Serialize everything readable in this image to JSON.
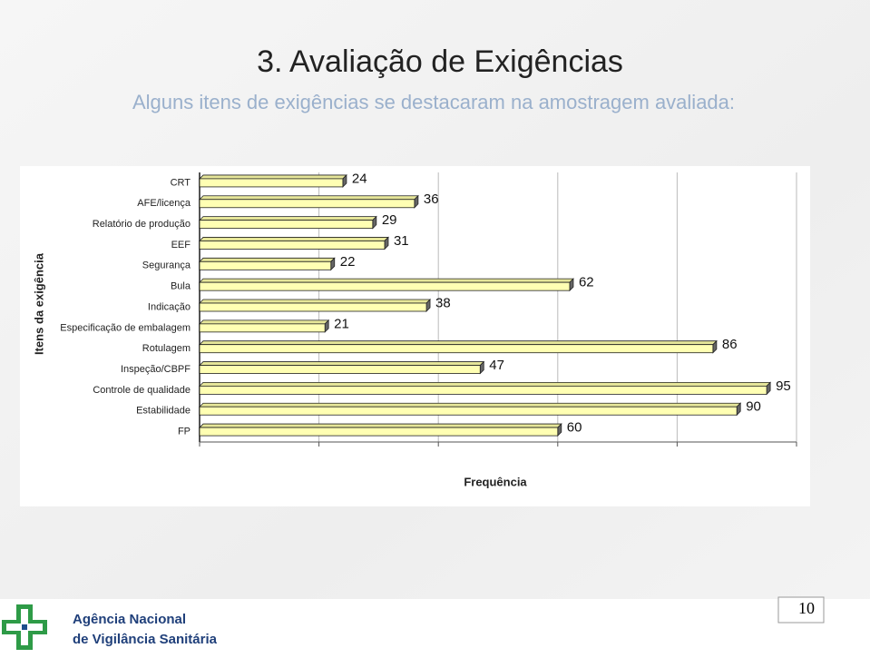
{
  "header": {
    "title": "3. Avaliação de Exigências",
    "subtitle": "Alguns itens de exigências se destacaram na amostragem avaliada:"
  },
  "chart_data": {
    "type": "barh",
    "y_label": "Itens da exigência",
    "x_label": "Frequência",
    "categories": [
      "CRT",
      "AFE/licença",
      "Relatório de produção",
      "EEF",
      "Segurança",
      "Bula",
      "Indicação",
      "Especificação de embalagem",
      "Rotulagem",
      "Inspeção/CBPF",
      "Controle de qualidade",
      "Estabilidade",
      "FP"
    ],
    "values": [
      24,
      36,
      29,
      31,
      22,
      62,
      38,
      21,
      86,
      47,
      95,
      90,
      60
    ],
    "color": "#ffffb3",
    "xlim": [
      0,
      100
    ],
    "xticks": [
      0,
      20,
      40,
      60,
      80,
      100
    ],
    "grid": true
  },
  "footer": {
    "agency_line1": "Agência Nacional",
    "agency_line2": "de Vigilância Sanitária",
    "page_number": "10"
  }
}
